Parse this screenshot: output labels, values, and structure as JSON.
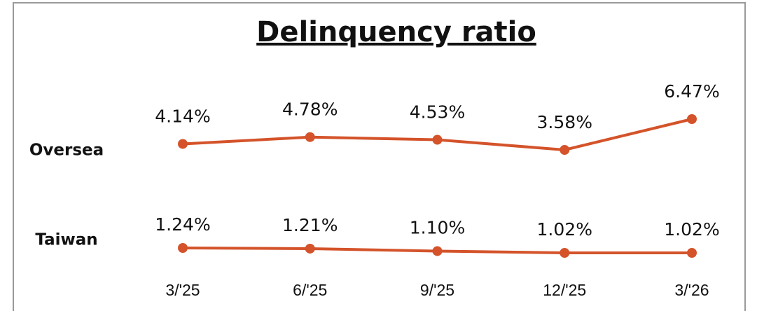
{
  "chart_data": {
    "type": "line",
    "title": "Delinquency ratio",
    "categories": [
      "3/'25",
      "6/'25",
      "9/'25",
      "12/'25",
      "3/'26"
    ],
    "series": [
      {
        "name": "Oversea",
        "color": "#d4532a",
        "values": [
          4.14,
          4.78,
          4.53,
          3.58,
          6.47
        ],
        "value_labels": [
          "4.14%",
          "4.78%",
          "4.53%",
          "3.58%",
          "6.47%"
        ]
      },
      {
        "name": "Taiwan",
        "color": "#d4532a",
        "values": [
          1.24,
          1.21,
          1.1,
          1.02,
          1.02
        ],
        "value_labels": [
          "1.24%",
          "1.21%",
          "1.10%",
          "1.02%",
          "1.02%"
        ]
      }
    ]
  }
}
